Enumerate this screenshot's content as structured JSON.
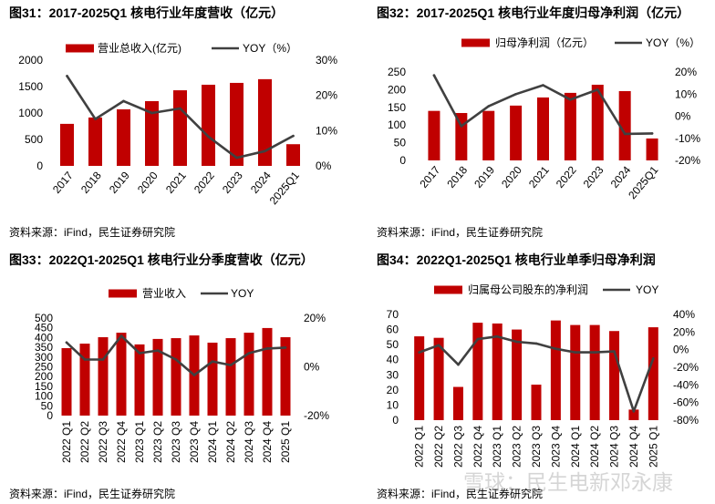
{
  "watermark": "雪球：民生电新邓永康",
  "chart_data": [
    {
      "type": "bar",
      "title": "图31：2017-2025Q1 核电行业年度营收（亿元）",
      "source": "资料来源：iFind，民生证券研究院",
      "categories": [
        "2017",
        "2018",
        "2019",
        "2020",
        "2021",
        "2022",
        "2023",
        "2024",
        "2025Q1"
      ],
      "series": [
        {
          "name": "营业总收入(亿元)",
          "type": "bar",
          "color": "#C00000",
          "values": [
            795,
            915,
            1070,
            1225,
            1430,
            1535,
            1570,
            1640,
            410
          ]
        },
        {
          "name": "YOY（%）",
          "type": "line",
          "color": "#404040",
          "values": [
            25.5,
            13.3,
            18.4,
            15.0,
            16.3,
            8.3,
            2.3,
            4.2,
            8.5
          ]
        }
      ],
      "y_left": {
        "range": [
          0,
          2000
        ],
        "ticks": [
          "0",
          "500",
          "1000",
          "1500",
          "2000"
        ]
      },
      "y_right": {
        "range": [
          0,
          30
        ],
        "ticks": [
          "0%",
          "10%",
          "20%",
          "30%"
        ]
      },
      "legend": "top",
      "grid": false
    },
    {
      "type": "bar",
      "title": "图32：2017-2025Q1 核电行业年度归母净利润（亿元）",
      "source": "资料来源：iFind，民生证券研究院",
      "categories": [
        "2017",
        "2018",
        "2019",
        "2020",
        "2021",
        "2022",
        "2023",
        "2024",
        "2025Q1"
      ],
      "series": [
        {
          "name": "归母净利润（亿元）",
          "type": "bar",
          "color": "#C00000",
          "values": [
            140,
            134,
            140,
            155,
            178,
            191,
            214,
            196,
            62
          ]
        },
        {
          "name": "YOY（%）",
          "type": "line",
          "color": "#404040",
          "values": [
            18.5,
            -4.5,
            4.5,
            10.0,
            14.0,
            7.5,
            12.0,
            -8.0,
            -7.8
          ]
        }
      ],
      "y_left": {
        "range": [
          0,
          250
        ],
        "ticks": [
          "0",
          "50",
          "100",
          "150",
          "200",
          "250"
        ]
      },
      "y_right": {
        "range": [
          -20,
          20
        ],
        "ticks": [
          "-20%",
          "-10%",
          "0%",
          "10%",
          "20%"
        ]
      },
      "legend": "top",
      "grid": false
    },
    {
      "type": "bar",
      "title": "图33：2022Q1-2025Q1 核电行业分季度营收（亿元）",
      "source": "资料来源：iFind，民生证券研究院",
      "categories": [
        "2022 Q1",
        "2022 Q2",
        "2022 Q3",
        "2022 Q4",
        "2023 Q1",
        "2023 Q2",
        "2023 Q3",
        "2023 Q4",
        "2024 Q1",
        "2024 Q2",
        "2024 Q3",
        "2024 Q4",
        "2025 Q1"
      ],
      "series": [
        {
          "name": "营业收入",
          "type": "bar",
          "color": "#C00000",
          "values": [
            346,
            369,
            402,
            425,
            365,
            393,
            397,
            411,
            374,
            397,
            425,
            449,
            402
          ]
        },
        {
          "name": "YOY",
          "type": "line",
          "color": "#404040",
          "values": [
            10.0,
            3.0,
            3.0,
            12.7,
            5.6,
            6.7,
            3.0,
            -3.4,
            2.2,
            0.7,
            5.6,
            7.5,
            7.9
          ]
        }
      ],
      "y_left": {
        "range": [
          0,
          500
        ],
        "ticks": [
          "0",
          "50",
          "100",
          "150",
          "200",
          "250",
          "300",
          "350",
          "400",
          "450",
          "500"
        ]
      },
      "y_right": {
        "range": [
          -20,
          20
        ],
        "ticks": [
          "-20%",
          "0%",
          "20%"
        ]
      },
      "legend": "top",
      "grid": false
    },
    {
      "type": "bar",
      "title": "图34：2022Q1-2025Q1 核电行业单季归母净利润",
      "source": "资料来源：iFind，民生证券研究院",
      "categories": [
        "2022 Q1",
        "2022 Q2",
        "2022 Q3",
        "2022 Q4",
        "2023 Q1",
        "2023 Q2",
        "2023 Q3",
        "2023 Q4",
        "2024 Q1",
        "2024 Q2",
        "2024 Q3",
        "2024 Q4",
        "2025 Q1"
      ],
      "series": [
        {
          "name": "归属母公司股东的净利润",
          "type": "bar",
          "color": "#C00000",
          "values": [
            55.5,
            54.5,
            22,
            64.5,
            64,
            60,
            23.5,
            66,
            63,
            63,
            59,
            7,
            61.5
          ]
        },
        {
          "name": "YOY",
          "type": "line",
          "color": "#404040",
          "values": [
            -3,
            5,
            -17,
            12,
            15,
            9,
            7,
            1,
            -3,
            -3,
            -2,
            -70,
            -10
          ]
        }
      ],
      "y_left": {
        "range": [
          0,
          70
        ],
        "ticks": [
          "0",
          "10",
          "20",
          "30",
          "40",
          "50",
          "60",
          "70"
        ]
      },
      "y_right": {
        "range": [
          -80,
          40
        ],
        "ticks": [
          "-80%",
          "-60%",
          "-40%",
          "-20%",
          "0%",
          "20%",
          "40%"
        ]
      },
      "legend": "top",
      "grid": false
    }
  ]
}
